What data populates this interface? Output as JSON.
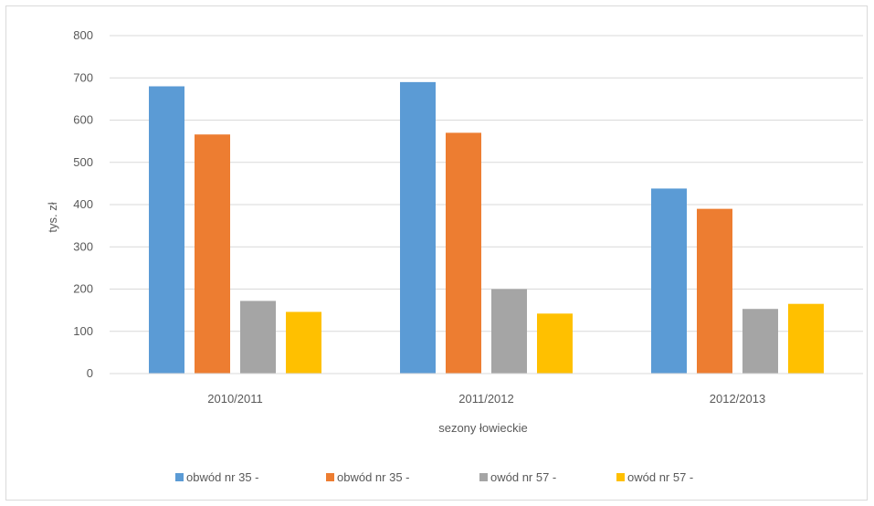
{
  "chart_data": {
    "type": "bar",
    "categories": [
      "2010/2011",
      "2011/2012",
      "2012/2013"
    ],
    "series": [
      {
        "name": "obwód nr 35 -",
        "color": "#5b9bd5",
        "values": [
          680,
          690,
          438
        ]
      },
      {
        "name": "obwód nr 35 -",
        "color": "#ed7d31",
        "values": [
          566,
          570,
          390
        ]
      },
      {
        "name": "owód nr 57 -",
        "color": "#a5a5a5",
        "values": [
          172,
          200,
          153
        ]
      },
      {
        "name": "owód nr 57 -",
        "color": "#ffc000",
        "values": [
          146,
          142,
          165
        ]
      }
    ],
    "xlabel": "sezony łowieckie",
    "ylabel": "tys. zł",
    "ylim": [
      0,
      800
    ],
    "yticks": [
      0,
      100,
      200,
      300,
      400,
      500,
      600,
      700,
      800
    ],
    "grid": true,
    "legend": "bottom"
  }
}
